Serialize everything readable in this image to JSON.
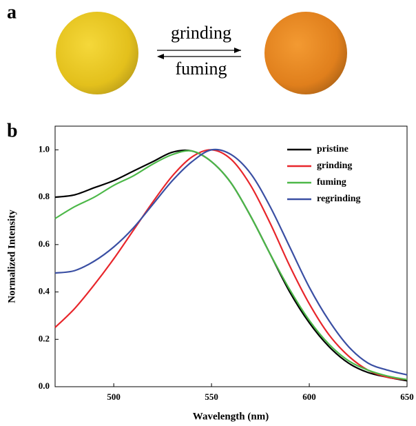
{
  "panel_labels": [
    "a",
    "b"
  ],
  "scheme": {
    "forward": "grinding",
    "backward": "fuming"
  },
  "chart_data": {
    "type": "line",
    "x_label": "Wavelength (nm)",
    "y_label": "Normalized Intensity",
    "x": [
      470,
      480,
      490,
      500,
      510,
      520,
      530,
      540,
      550,
      560,
      570,
      580,
      590,
      600,
      610,
      620,
      630,
      640,
      650
    ],
    "series": [
      {
        "name": "pristine",
        "color": "#000000",
        "values": [
          0.8,
          0.81,
          0.84,
          0.87,
          0.91,
          0.95,
          0.99,
          0.995,
          0.95,
          0.86,
          0.72,
          0.56,
          0.4,
          0.27,
          0.17,
          0.1,
          0.06,
          0.04,
          0.025
        ]
      },
      {
        "name": "grinding",
        "color": "#e8262b",
        "values": [
          0.25,
          0.33,
          0.43,
          0.54,
          0.66,
          0.78,
          0.89,
          0.97,
          1.0,
          0.96,
          0.85,
          0.69,
          0.51,
          0.35,
          0.22,
          0.13,
          0.07,
          0.04,
          0.03
        ]
      },
      {
        "name": "fuming",
        "color": "#4cb848",
        "values": [
          0.71,
          0.76,
          0.8,
          0.85,
          0.89,
          0.94,
          0.98,
          0.995,
          0.95,
          0.86,
          0.72,
          0.56,
          0.41,
          0.28,
          0.18,
          0.11,
          0.07,
          0.045,
          0.03
        ]
      },
      {
        "name": "regrinding",
        "color": "#3a4fa3",
        "values": [
          0.48,
          0.49,
          0.53,
          0.59,
          0.67,
          0.77,
          0.87,
          0.95,
          1.0,
          0.98,
          0.9,
          0.76,
          0.59,
          0.42,
          0.28,
          0.17,
          0.1,
          0.07,
          0.05
        ]
      }
    ],
    "xlim": [
      470,
      650
    ],
    "xticks": [
      500,
      550,
      600,
      650
    ],
    "ylim": [
      0,
      1.1
    ],
    "yticks": [
      {
        "value": 0,
        "label": "0.0"
      },
      0.2,
      0.4,
      0.6,
      0.8,
      {
        "value": 1,
        "label": "1.0"
      }
    ],
    "legend": "upper right"
  }
}
